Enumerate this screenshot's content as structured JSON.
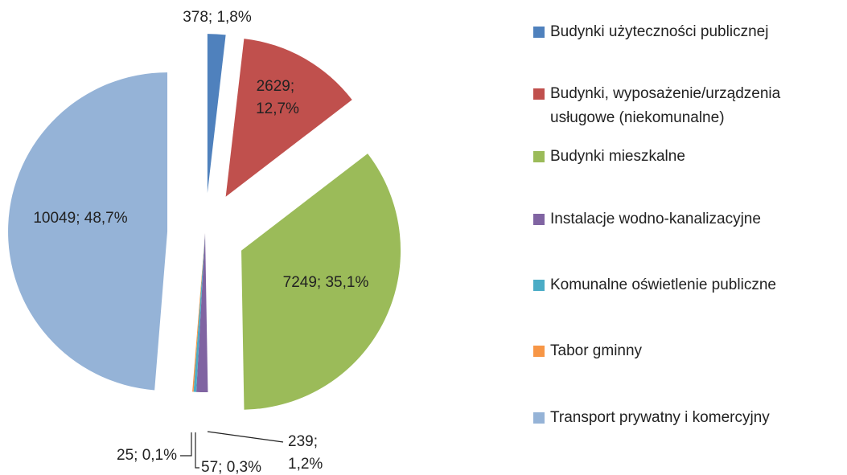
{
  "chart_data": {
    "type": "pie",
    "categories": [
      "Budynki użyteczności publicznej",
      "Budynki, wyposażenie/urządzenia usługowe (niekomunalne)",
      "Budynki mieszkalne",
      "Instalacje wodno-kanalizacyjne",
      "Komunalne oświetlenie publiczne",
      "Tabor gminny",
      "Transport prywatny i komercyjny"
    ],
    "values": [
      378,
      2629,
      7249,
      239,
      57,
      25,
      10049
    ],
    "value_labels": [
      "378; 1,8%",
      "2629; 12,7%",
      "7249; 35,1%",
      "239; 1,2%",
      "57; 0,3%",
      "25; 0,1%",
      "10049; 48,7%"
    ],
    "colors": [
      "#4f81bd",
      "#c0504d",
      "#9bbb59",
      "#8064a2",
      "#4bacc6",
      "#f79646",
      "#95b3d7"
    ],
    "legend": "right"
  }
}
